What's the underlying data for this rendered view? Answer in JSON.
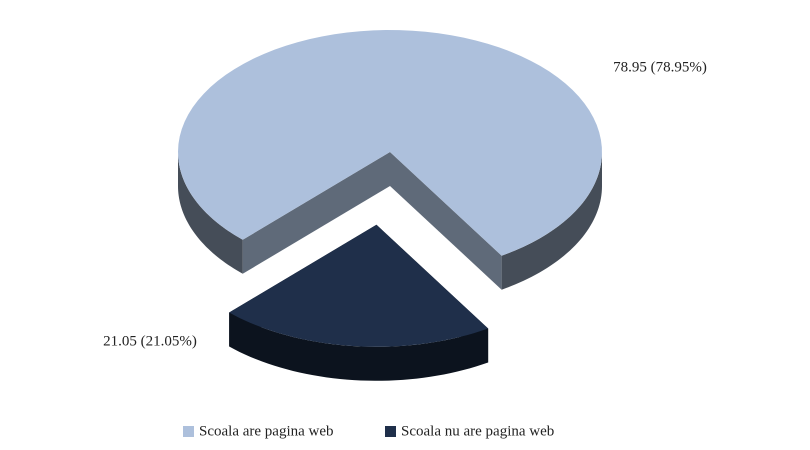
{
  "chart_data": {
    "type": "pie",
    "categories": [
      "Scoala are pagina web",
      "Scoala nu are pagina web"
    ],
    "values": [
      78.95,
      21.05
    ],
    "value_labels": [
      "78.95 (78.95%)",
      "21.05 (21.05%)"
    ],
    "colors": [
      "#adc0dc",
      "#1f2f4a"
    ],
    "legend": "bottom"
  }
}
